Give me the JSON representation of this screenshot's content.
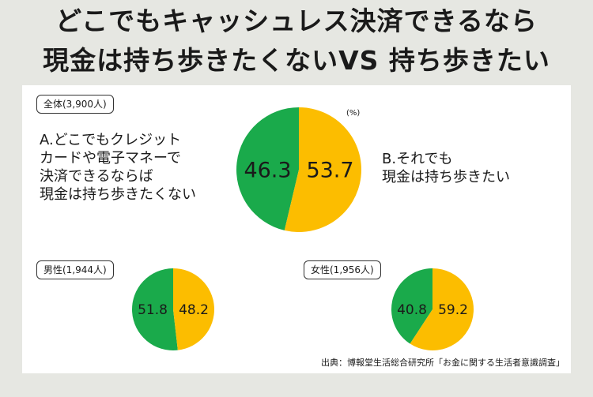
{
  "title": {
    "line1": "どこでもキャッシュレス決済できるなら",
    "line2": "現金は持ち歩きたくないVS 持ち歩きたい"
  },
  "unit": "(%)",
  "labels": {
    "a": [
      "A.どこでもクレジット",
      "カードや電子マネーで",
      "決済できるならば",
      "現金は持ち歩きたくない"
    ],
    "b": [
      "B.それでも",
      "現金は持ち歩きたい"
    ]
  },
  "source": "出典：博報堂生活総合研究所「お金に関する生活者意識調査」",
  "colors": {
    "a": "#1aaa4b",
    "b": "#fcbd00"
  },
  "chart_data": [
    {
      "type": "pie",
      "group": "全体(3,900人)",
      "categories": [
        "A",
        "B"
      ],
      "values": [
        46.3,
        53.7
      ],
      "value_labels": [
        "46.3",
        "53.7"
      ]
    },
    {
      "type": "pie",
      "group": "男性(1,944人)",
      "categories": [
        "A",
        "B"
      ],
      "values": [
        51.8,
        48.2
      ],
      "value_labels": [
        "51.8",
        "48.2"
      ]
    },
    {
      "type": "pie",
      "group": "女性(1,956人)",
      "categories": [
        "A",
        "B"
      ],
      "values": [
        40.8,
        59.2
      ],
      "value_labels": [
        "40.8",
        "59.2"
      ]
    }
  ]
}
